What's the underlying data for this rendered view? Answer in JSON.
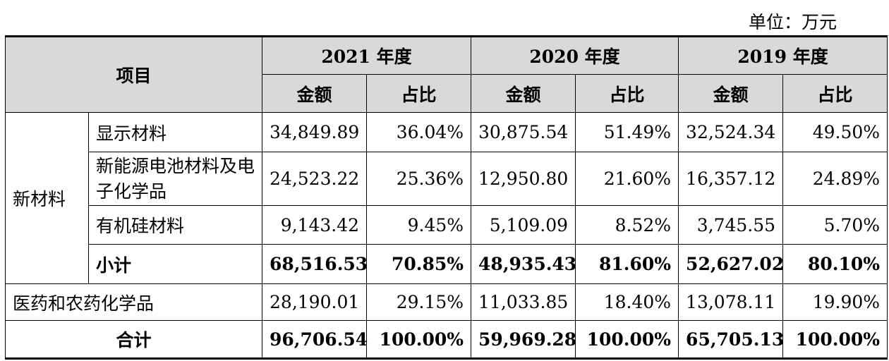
{
  "unit": "单位：万元",
  "header": {
    "item": "项目",
    "years": [
      "2021 年度",
      "2020 年度",
      "2019 年度"
    ],
    "amount": "金额",
    "ratio": "占比"
  },
  "group_label": "新材料",
  "rows": [
    {
      "label": "显示材料",
      "v": [
        "34,849.89",
        "36.04%",
        "30,875.54",
        "51.49%",
        "32,524.34",
        "49.50%"
      ]
    },
    {
      "label": "新能源电池材料及电子化学品",
      "v": [
        "24,523.22",
        "25.36%",
        "12,950.80",
        "21.60%",
        "16,357.12",
        "24.89%"
      ]
    },
    {
      "label": "有机硅材料",
      "v": [
        "9,143.42",
        "9.45%",
        "5,109.09",
        "8.52%",
        "3,745.55",
        "5.70%"
      ]
    },
    {
      "label": "小计",
      "v": [
        "68,516.53",
        "70.85%",
        "48,935.43",
        "81.60%",
        "52,627.02",
        "80.10%"
      ]
    },
    {
      "label": "医药和农药化学品",
      "v": [
        "28,190.01",
        "29.15%",
        "11,033.85",
        "18.40%",
        "13,078.11",
        "19.90%"
      ]
    },
    {
      "label": "合计",
      "v": [
        "96,706.54",
        "100.00%",
        "59,969.28",
        "100.00%",
        "65,705.13",
        "100.00%"
      ]
    }
  ]
}
